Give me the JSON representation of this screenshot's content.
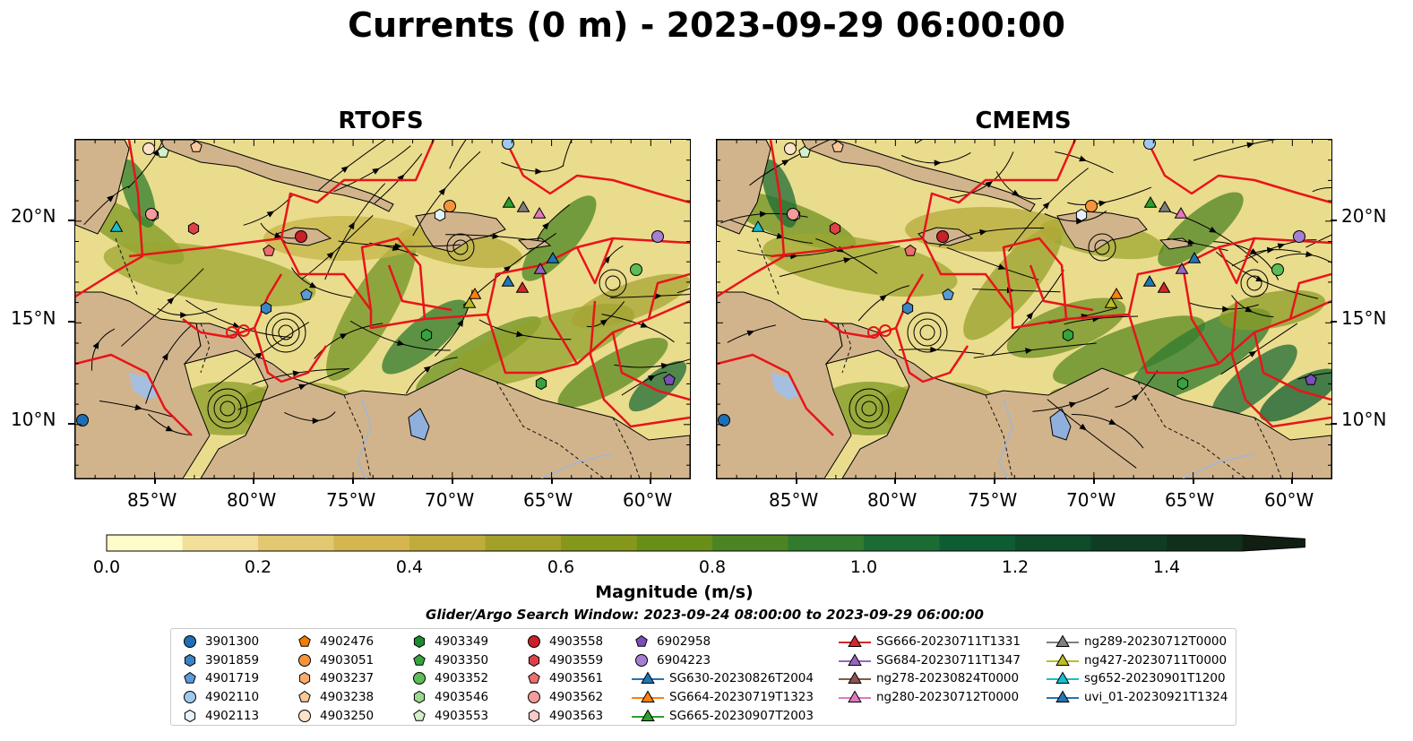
{
  "title": "Currents (0 m) - 2023-09-29 06:00:00",
  "panels": [
    {
      "title": "RTOFS"
    },
    {
      "title": "CMEMS"
    }
  ],
  "lat_labels": [
    "20°N",
    "15°N",
    "10°N"
  ],
  "lon_labels": [
    "85°W",
    "80°W",
    "75°W",
    "70°W",
    "65°W",
    "60°W"
  ],
  "colorbar": {
    "label": "Magnitude (m/s)",
    "ticks": [
      "0.0",
      "0.2",
      "0.4",
      "0.6",
      "0.8",
      "1.0",
      "1.2",
      "1.4"
    ],
    "colors": [
      "#fffcc9",
      "#f2e09a",
      "#e3c872",
      "#d4b54f",
      "#bfac3c",
      "#a3a02a",
      "#86981c",
      "#6a8f18",
      "#4d8423",
      "#327a2d",
      "#1d6b34",
      "#0e5c32",
      "#0e4c2a",
      "#0f3d23",
      "#10301c",
      "#111f12"
    ]
  },
  "search_window": "Glider/Argo Search Window: 2023-09-24 08:00:00 to 2023-09-29 06:00:00",
  "legend": {
    "columns": [
      [
        {
          "label": "3901300",
          "marker": "circle",
          "color": "#1f6fb4"
        },
        {
          "label": "3901859",
          "marker": "hexagon",
          "color": "#3c83c4"
        },
        {
          "label": "4901719",
          "marker": "pentagon",
          "color": "#5a9bd5"
        },
        {
          "label": "4902110",
          "marker": "circle",
          "color": "#9ec9ec"
        },
        {
          "label": "4902113",
          "marker": "hexagon",
          "color": "#e5f1fb"
        }
      ],
      [
        {
          "label": "4902476",
          "marker": "pentagon",
          "color": "#f57c00"
        },
        {
          "label": "4903051",
          "marker": "circle",
          "color": "#f7933a"
        },
        {
          "label": "4903237",
          "marker": "hexagon",
          "color": "#f9ac6a"
        },
        {
          "label": "4903238",
          "marker": "pentagon",
          "color": "#fbc79a"
        },
        {
          "label": "4903250",
          "marker": "circle",
          "color": "#fde2c8"
        }
      ],
      [
        {
          "label": "4903349",
          "marker": "hexagon",
          "color": "#1e8a2e"
        },
        {
          "label": "4903350",
          "marker": "pentagon",
          "color": "#36a33f"
        },
        {
          "label": "4903352",
          "marker": "circle",
          "color": "#5dbb58"
        },
        {
          "label": "4903546",
          "marker": "hexagon",
          "color": "#9bd88e"
        },
        {
          "label": "4903553",
          "marker": "pentagon",
          "color": "#d3f1c9"
        }
      ],
      [
        {
          "label": "4903558",
          "marker": "circle",
          "color": "#c9202a"
        },
        {
          "label": "4903559",
          "marker": "hexagon",
          "color": "#de4246"
        },
        {
          "label": "4903561",
          "marker": "pentagon",
          "color": "#ec6e6e"
        },
        {
          "label": "4903562",
          "marker": "circle",
          "color": "#f49b9b"
        },
        {
          "label": "4903563",
          "marker": "hexagon",
          "color": "#f9c9c9"
        }
      ],
      [
        {
          "label": "6902958",
          "marker": "pentagon",
          "color": "#7b4fb8"
        },
        {
          "label": "6904223",
          "marker": "circle",
          "color": "#a47fd2"
        },
        {
          "label": "SG630-20230826T2004",
          "marker": "triangle-line",
          "color": "#1f77b4"
        },
        {
          "label": "SG664-20230719T1323",
          "marker": "triangle-line",
          "color": "#ff7f0e"
        },
        {
          "label": "SG665-20230907T2003",
          "marker": "triangle-line",
          "color": "#2ca02c"
        }
      ],
      [
        {
          "label": "SG666-20230711T1331",
          "marker": "triangle-line",
          "color": "#d62728"
        },
        {
          "label": "SG684-20230711T1347",
          "marker": "triangle-line",
          "color": "#9467bd"
        },
        {
          "label": "ng278-20230824T0000",
          "marker": "triangle-line",
          "color": "#8c564b"
        },
        {
          "label": "ng280-20230712T0000",
          "marker": "triangle-line",
          "color": "#e377c2"
        }
      ],
      [
        {
          "label": "ng289-20230712T0000",
          "marker": "triangle-line",
          "color": "#7f7f7f"
        },
        {
          "label": "ng427-20230711T0000",
          "marker": "triangle-line",
          "color": "#bcbd22"
        },
        {
          "label": "sg652-20230901T1200",
          "marker": "triangle-line",
          "color": "#17becf"
        },
        {
          "label": "uvi_01-20230921T1324",
          "marker": "triangle-line",
          "color": "#1f77b4"
        }
      ]
    ]
  }
}
